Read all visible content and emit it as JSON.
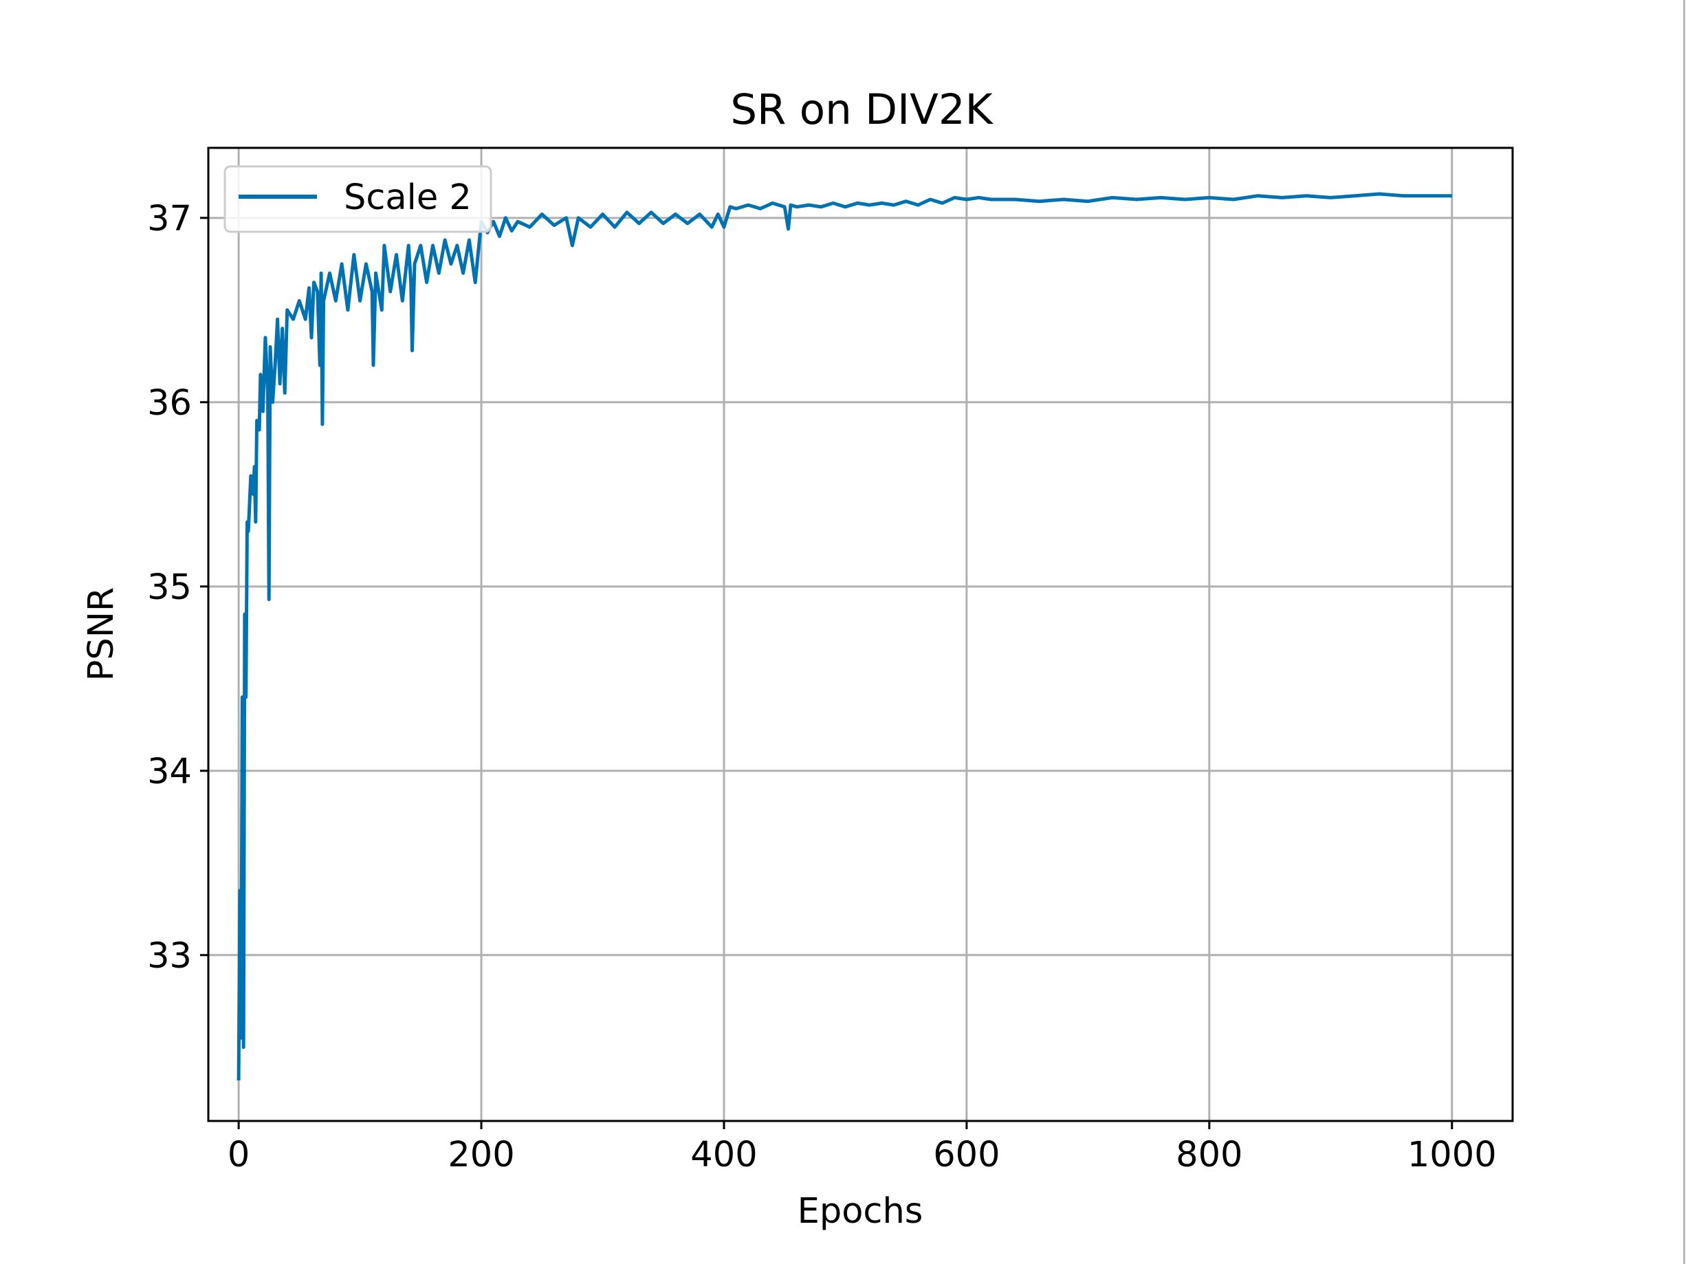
{
  "chart_data": {
    "type": "line",
    "title": "SR on DIV2K",
    "xlabel": "Epochs",
    "ylabel": "PSNR",
    "xlim": [
      -25,
      1050
    ],
    "ylim": [
      32.1,
      37.38
    ],
    "xticks": [
      0,
      200,
      400,
      600,
      800,
      1000
    ],
    "yticks": [
      33,
      34,
      35,
      36,
      37
    ],
    "grid": true,
    "legend_position": "top-left",
    "series": [
      {
        "name": "Scale 2",
        "color": "#0072b2",
        "points": [
          [
            0,
            32.32
          ],
          [
            1,
            33.35
          ],
          [
            2,
            32.55
          ],
          [
            3,
            34.4
          ],
          [
            4,
            32.5
          ],
          [
            5,
            34.85
          ],
          [
            6,
            34.4
          ],
          [
            7,
            35.35
          ],
          [
            8,
            35.3
          ],
          [
            10,
            35.6
          ],
          [
            12,
            35.5
          ],
          [
            13,
            35.65
          ],
          [
            14,
            35.35
          ],
          [
            15,
            35.9
          ],
          [
            17,
            35.85
          ],
          [
            18,
            36.15
          ],
          [
            20,
            35.95
          ],
          [
            22,
            36.35
          ],
          [
            24,
            36.05
          ],
          [
            25,
            34.93
          ],
          [
            26,
            36.3
          ],
          [
            28,
            36.0
          ],
          [
            30,
            36.2
          ],
          [
            32,
            36.45
          ],
          [
            34,
            36.1
          ],
          [
            36,
            36.4
          ],
          [
            38,
            36.05
          ],
          [
            40,
            36.5
          ],
          [
            45,
            36.45
          ],
          [
            50,
            36.55
          ],
          [
            55,
            36.45
          ],
          [
            58,
            36.62
          ],
          [
            60,
            36.35
          ],
          [
            62,
            36.65
          ],
          [
            65,
            36.6
          ],
          [
            67,
            36.2
          ],
          [
            68,
            36.7
          ],
          [
            69,
            35.88
          ],
          [
            70,
            36.55
          ],
          [
            75,
            36.7
          ],
          [
            80,
            36.55
          ],
          [
            85,
            36.75
          ],
          [
            90,
            36.5
          ],
          [
            95,
            36.8
          ],
          [
            100,
            36.55
          ],
          [
            105,
            36.75
          ],
          [
            110,
            36.6
          ],
          [
            111,
            36.2
          ],
          [
            113,
            36.7
          ],
          [
            118,
            36.5
          ],
          [
            120,
            36.85
          ],
          [
            125,
            36.6
          ],
          [
            130,
            36.8
          ],
          [
            135,
            36.55
          ],
          [
            140,
            36.85
          ],
          [
            142,
            36.65
          ],
          [
            143,
            36.28
          ],
          [
            145,
            36.75
          ],
          [
            150,
            36.85
          ],
          [
            155,
            36.65
          ],
          [
            160,
            36.85
          ],
          [
            165,
            36.7
          ],
          [
            170,
            36.88
          ],
          [
            175,
            36.75
          ],
          [
            180,
            36.85
          ],
          [
            185,
            36.7
          ],
          [
            190,
            36.88
          ],
          [
            195,
            36.65
          ],
          [
            200,
            36.98
          ],
          [
            205,
            36.92
          ],
          [
            210,
            36.98
          ],
          [
            215,
            36.9
          ],
          [
            220,
            37.0
          ],
          [
            225,
            36.93
          ],
          [
            230,
            36.98
          ],
          [
            240,
            36.95
          ],
          [
            250,
            37.02
          ],
          [
            260,
            36.96
          ],
          [
            270,
            37.0
          ],
          [
            275,
            36.85
          ],
          [
            280,
            37.0
          ],
          [
            290,
            36.95
          ],
          [
            300,
            37.02
          ],
          [
            310,
            36.95
          ],
          [
            320,
            37.03
          ],
          [
            330,
            36.97
          ],
          [
            340,
            37.03
          ],
          [
            350,
            36.97
          ],
          [
            360,
            37.02
          ],
          [
            370,
            36.97
          ],
          [
            380,
            37.02
          ],
          [
            390,
            36.95
          ],
          [
            395,
            37.02
          ],
          [
            400,
            36.95
          ],
          [
            405,
            37.06
          ],
          [
            410,
            37.05
          ],
          [
            420,
            37.07
          ],
          [
            430,
            37.05
          ],
          [
            440,
            37.08
          ],
          [
            450,
            37.06
          ],
          [
            453,
            36.94
          ],
          [
            455,
            37.07
          ],
          [
            460,
            37.06
          ],
          [
            470,
            37.07
          ],
          [
            480,
            37.06
          ],
          [
            490,
            37.08
          ],
          [
            500,
            37.06
          ],
          [
            510,
            37.08
          ],
          [
            520,
            37.07
          ],
          [
            530,
            37.08
          ],
          [
            540,
            37.07
          ],
          [
            550,
            37.09
          ],
          [
            560,
            37.07
          ],
          [
            570,
            37.1
          ],
          [
            580,
            37.08
          ],
          [
            590,
            37.11
          ],
          [
            600,
            37.1
          ],
          [
            610,
            37.11
          ],
          [
            620,
            37.1
          ],
          [
            640,
            37.1
          ],
          [
            660,
            37.09
          ],
          [
            680,
            37.1
          ],
          [
            700,
            37.09
          ],
          [
            720,
            37.11
          ],
          [
            740,
            37.1
          ],
          [
            760,
            37.11
          ],
          [
            780,
            37.1
          ],
          [
            800,
            37.11
          ],
          [
            820,
            37.1
          ],
          [
            840,
            37.12
          ],
          [
            860,
            37.11
          ],
          [
            880,
            37.12
          ],
          [
            900,
            37.11
          ],
          [
            920,
            37.12
          ],
          [
            940,
            37.13
          ],
          [
            960,
            37.12
          ],
          [
            980,
            37.12
          ],
          [
            1000,
            37.12
          ]
        ]
      }
    ]
  }
}
